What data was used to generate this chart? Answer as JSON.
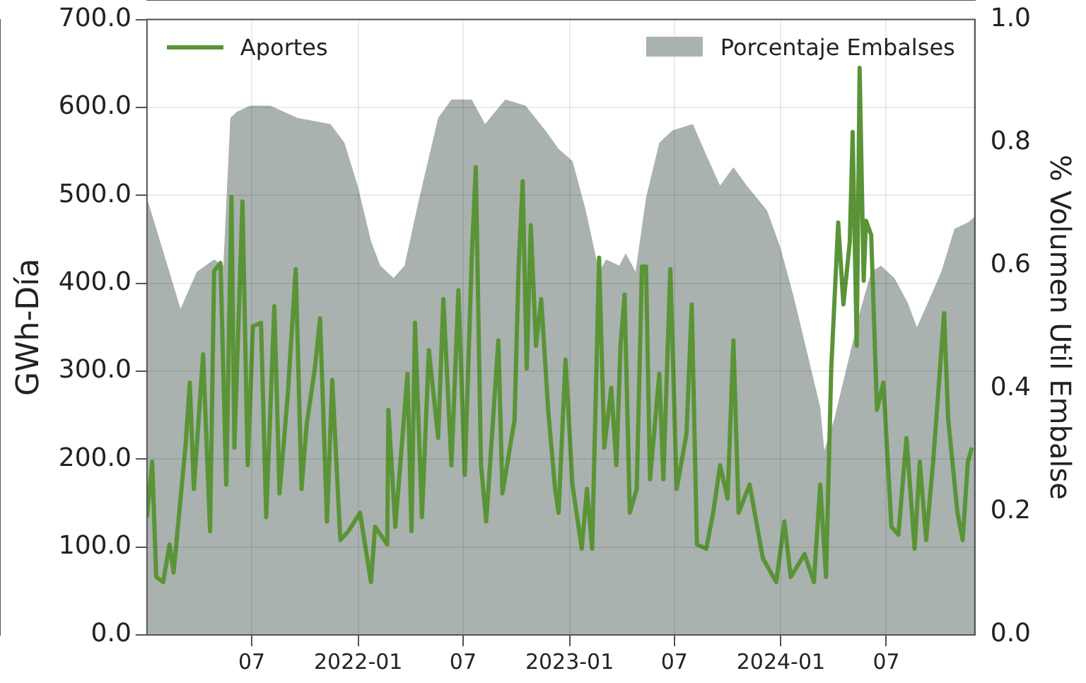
{
  "chart_data": {
    "type": "line",
    "ylabel": "GWh-Día",
    "y2label": "% Volumen Util Embalse",
    "xlim": [
      "2021-01-01",
      "2024-12-01"
    ],
    "xticks": [
      {
        "value": "2021-07",
        "label": "07"
      },
      {
        "value": "2022-01",
        "label": "2022-01"
      },
      {
        "value": "2022-07",
        "label": "07"
      },
      {
        "value": "2023-01",
        "label": "2023-01"
      },
      {
        "value": "2023-07",
        "label": "07"
      },
      {
        "value": "2024-01",
        "label": "2024-01"
      },
      {
        "value": "2024-07",
        "label": "07"
      }
    ],
    "ylim": [
      0,
      700
    ],
    "yticks": [
      {
        "value": 0,
        "label": "0.0"
      },
      {
        "value": 100,
        "label": "100.0"
      },
      {
        "value": 200,
        "label": "200.0"
      },
      {
        "value": 300,
        "label": "300.0"
      },
      {
        "value": 400,
        "label": "400.0"
      },
      {
        "value": 500,
        "label": "500.0"
      },
      {
        "value": 600,
        "label": "600.0"
      },
      {
        "value": 700,
        "label": "700.0"
      }
    ],
    "y2lim": [
      0,
      1
    ],
    "y2ticks": [
      {
        "value": 0,
        "label": "0.0"
      },
      {
        "value": 0.2,
        "label": "0.2"
      },
      {
        "value": 0.4,
        "label": "0.4"
      },
      {
        "value": 0.6,
        "label": "0.6"
      },
      {
        "value": 0.8,
        "label": "0.8"
      },
      {
        "value": 1,
        "label": "1.0"
      }
    ],
    "grid": true,
    "legend": "top",
    "series": [
      {
        "name": "Aportes",
        "type": "line",
        "color": "#5a9437",
        "x": [
          "2021-01-01",
          "2021-01-10",
          "2021-01-17",
          "2021-01-29",
          "2021-02-09",
          "2021-02-16",
          "2021-02-28",
          "2021-03-09",
          "2021-03-16",
          "2021-03-23",
          "2021-04-08",
          "2021-04-20",
          "2021-04-27",
          "2021-05-08",
          "2021-05-18",
          "2021-05-27",
          "2021-06-01",
          "2021-06-15",
          "2021-06-24",
          "2021-07-03",
          "2021-07-17",
          "2021-07-26",
          "2021-08-09",
          "2021-08-18",
          "2021-09-01",
          "2021-09-15",
          "2021-09-25",
          "2021-10-04",
          "2021-10-18",
          "2021-10-27",
          "2021-11-08",
          "2021-11-17",
          "2021-12-01",
          "2021-12-15",
          "2022-01-04",
          "2022-01-23",
          "2022-01-30",
          "2022-02-20",
          "2022-02-22",
          "2022-03-06",
          "2022-03-27",
          "2022-04-03",
          "2022-04-09",
          "2022-04-21",
          "2022-05-03",
          "2022-05-19",
          "2022-05-28",
          "2022-06-11",
          "2022-06-23",
          "2022-07-04",
          "2022-07-16",
          "2022-07-23",
          "2022-08-01",
          "2022-08-10",
          "2022-08-31",
          "2022-09-07",
          "2022-09-28",
          "2022-10-05",
          "2022-10-12",
          "2022-10-19",
          "2022-10-26",
          "2022-11-04",
          "2022-11-13",
          "2022-11-25",
          "2022-12-07",
          "2022-12-13",
          "2022-12-25",
          "2023-01-06",
          "2023-01-22",
          "2023-01-31",
          "2023-02-09",
          "2023-02-21",
          "2023-03-02",
          "2023-03-14",
          "2023-03-23",
          "2023-03-30",
          "2023-04-06",
          "2023-04-15",
          "2023-04-27",
          "2023-05-06",
          "2023-05-13",
          "2023-05-20",
          "2023-06-05",
          "2023-06-12",
          "2023-06-24",
          "2023-07-05",
          "2023-07-22",
          "2023-07-31",
          "2023-08-09",
          "2023-08-25",
          "2023-09-06",
          "2023-09-18",
          "2023-10-01",
          "2023-10-11",
          "2023-10-20",
          "2023-11-08",
          "2023-12-01",
          "2023-12-24",
          "2024-01-07",
          "2024-01-18",
          "2024-02-11",
          "2024-02-27",
          "2024-03-09",
          "2024-03-19",
          "2024-03-28",
          "2024-04-09",
          "2024-04-18",
          "2024-04-29",
          "2024-05-04",
          "2024-05-11",
          "2024-05-16",
          "2024-05-23",
          "2024-05-27",
          "2024-06-05",
          "2024-06-15",
          "2024-06-26",
          "2024-07-10",
          "2024-07-22",
          "2024-08-05",
          "2024-08-19",
          "2024-08-28",
          "2024-09-08",
          "2024-09-20",
          "2024-10-09",
          "2024-10-16",
          "2024-11-01",
          "2024-11-10",
          "2024-11-19",
          "2024-11-26"
        ],
        "values": [
          134,
          197,
          66,
          60,
          103,
          71,
          155,
          218,
          287,
          166,
          319,
          118,
          414,
          423,
          171,
          498,
          213,
          493,
          193,
          351,
          355,
          134,
          374,
          161,
          271,
          416,
          166,
          240,
          303,
          360,
          129,
          290,
          108,
          118,
          139,
          60,
          123,
          103,
          256,
          123,
          297,
          118,
          355,
          134,
          324,
          224,
          382,
          193,
          392,
          182,
          429,
          532,
          193,
          129,
          335,
          161,
          245,
          419,
          516,
          303,
          466,
          329,
          382,
          256,
          166,
          139,
          313,
          171,
          98,
          166,
          98,
          429,
          213,
          281,
          193,
          329,
          387,
          139,
          166,
          419,
          419,
          177,
          297,
          177,
          416,
          166,
          229,
          376,
          103,
          98,
          139,
          193,
          155,
          335,
          139,
          171,
          87,
          60,
          129,
          66,
          92,
          60,
          171,
          66,
          303,
          469,
          376,
          447,
          572,
          329,
          645,
          403,
          471,
          455,
          256,
          287,
          123,
          114,
          224,
          98,
          197,
          108,
          197,
          366,
          245,
          139,
          108,
          197,
          213
        ]
      },
      {
        "name": "Porcentaje Embalses",
        "type": "area",
        "axis": "y2",
        "color": "#a9b2ae",
        "x": [
          "2021-01-01",
          "2021-02-28",
          "2021-03-28",
          "2021-04-27",
          "2021-05-13",
          "2021-05-25",
          "2021-06-05",
          "2021-06-28",
          "2021-08-02",
          "2021-09-18",
          "2021-11-14",
          "2021-12-08",
          "2021-12-31",
          "2022-01-23",
          "2022-02-08",
          "2022-03-03",
          "2022-03-22",
          "2022-04-14",
          "2022-05-19",
          "2022-06-11",
          "2022-07-16",
          "2022-08-08",
          "2022-09-12",
          "2022-10-17",
          "2022-11-20",
          "2022-12-13",
          "2023-01-06",
          "2023-01-29",
          "2023-02-21",
          "2023-03-05",
          "2023-03-28",
          "2023-04-08",
          "2023-04-25",
          "2023-05-13",
          "2023-06-05",
          "2023-06-28",
          "2023-08-02",
          "2023-08-25",
          "2023-09-18",
          "2023-10-11",
          "2023-11-03",
          "2023-12-08",
          "2023-12-31",
          "2024-01-23",
          "2024-02-15",
          "2024-03-09",
          "2024-03-16",
          "2024-04-02",
          "2024-04-25",
          "2024-05-18",
          "2024-06-05",
          "2024-06-22",
          "2024-07-15",
          "2024-08-07",
          "2024-08-23",
          "2024-09-11",
          "2024-10-04",
          "2024-10-27",
          "2024-11-19",
          "2024-12-01"
        ],
        "values": [
          0.71,
          0.53,
          0.59,
          0.61,
          0.6,
          0.84,
          0.85,
          0.86,
          0.86,
          0.84,
          0.83,
          0.8,
          0.73,
          0.64,
          0.6,
          0.58,
          0.6,
          0.7,
          0.84,
          0.87,
          0.87,
          0.83,
          0.87,
          0.86,
          0.82,
          0.79,
          0.77,
          0.69,
          0.59,
          0.61,
          0.6,
          0.62,
          0.59,
          0.71,
          0.8,
          0.82,
          0.83,
          0.78,
          0.73,
          0.76,
          0.73,
          0.69,
          0.63,
          0.55,
          0.46,
          0.37,
          0.3,
          0.35,
          0.44,
          0.53,
          0.59,
          0.6,
          0.58,
          0.54,
          0.5,
          0.54,
          0.59,
          0.66,
          0.67,
          0.68
        ]
      }
    ]
  }
}
